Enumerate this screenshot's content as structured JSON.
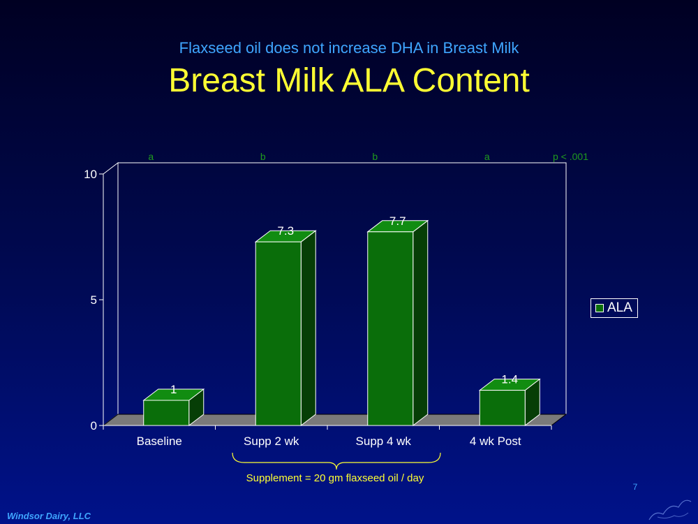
{
  "slide": {
    "subtitle": "Flaxseed oil does not increase DHA in Breast Milk",
    "title": "Breast Milk ALA Content",
    "supplement_note": "Supplement = 20 gm flaxseed oil / day",
    "page_number": "7",
    "footer": "Windsor Dairy, LLC"
  },
  "chart_data": {
    "type": "bar",
    "title": "Breast Milk ALA Content",
    "categories": [
      "Baseline",
      "Supp 2 wk",
      "Supp 4 wk",
      "4 wk Post"
    ],
    "series": [
      {
        "name": "ALA",
        "values": [
          1,
          7.3,
          7.7,
          1.4
        ],
        "color": "#0a6e0a"
      }
    ],
    "data_labels": [
      "1",
      "7.3",
      "7.7",
      "1.4"
    ],
    "significance_letters": [
      "a",
      "b",
      "b",
      "a"
    ],
    "p_value_label": "p < .001",
    "ylim": [
      0,
      10
    ],
    "yticks": [
      0,
      5,
      10
    ],
    "ytick_labels": [
      "0",
      "5",
      "10"
    ],
    "legend_position": "right",
    "three_d": true,
    "colors": {
      "bar_front": "#0a6e0a",
      "bar_top": "#118c11",
      "bar_side": "#063e06",
      "floor": "#7a7a7a",
      "annotation": "#1f9a1f"
    }
  }
}
